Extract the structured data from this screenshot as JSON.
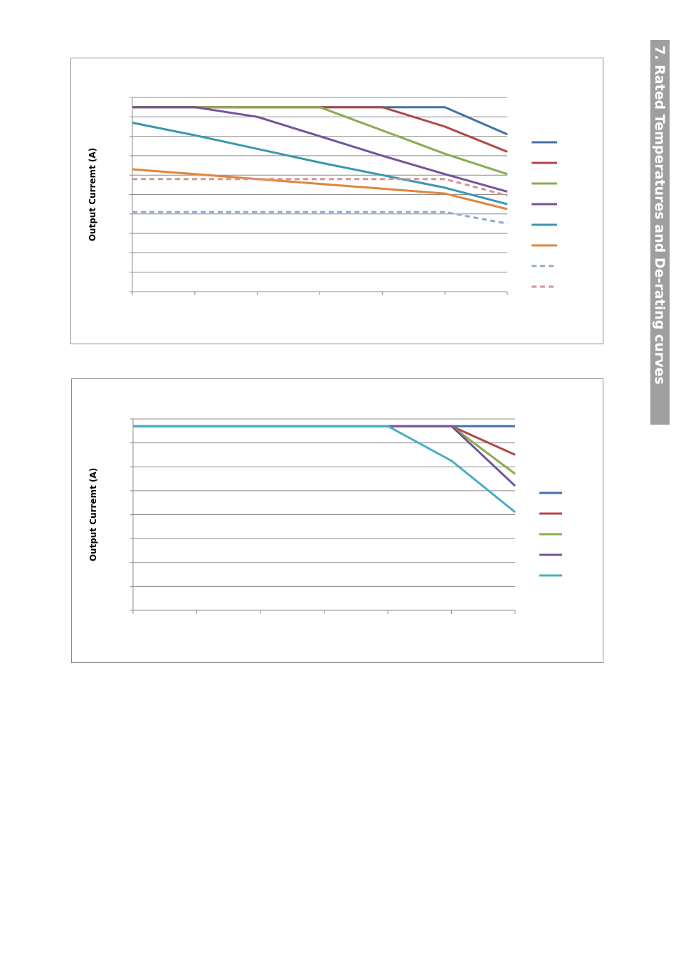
{
  "section": {
    "title": "7. Rated Temperatures and De-rating curves"
  },
  "chart_data": [
    {
      "type": "line",
      "title": "",
      "xlabel": "",
      "ylabel": "Output Curremt (A)",
      "x": [
        0,
        1,
        2,
        3,
        4,
        5,
        6
      ],
      "ylim": [
        0,
        10
      ],
      "grid": true,
      "legend_position": "right",
      "series": [
        {
          "values": [
            9.5,
            9.5,
            9.5,
            9.5,
            9.5,
            9.5,
            8.1
          ],
          "color": "#4470a8",
          "dash": false
        },
        {
          "values": [
            9.5,
            9.5,
            9.5,
            9.5,
            9.5,
            8.5,
            7.2
          ],
          "color": "#b04744",
          "dash": false
        },
        {
          "values": [
            9.5,
            9.5,
            9.5,
            9.5,
            8.3,
            7.1,
            6.05
          ],
          "color": "#8bab4c",
          "dash": false
        },
        {
          "values": [
            9.5,
            9.5,
            9.0,
            8.0,
            7.0,
            6.05,
            5.15
          ],
          "color": "#72549a",
          "dash": false
        },
        {
          "values": [
            8.7,
            8.05,
            7.35,
            6.65,
            6.0,
            5.35,
            4.5
          ],
          "color": "#3a97ad",
          "dash": false
        },
        {
          "values": [
            6.3,
            6.05,
            5.8,
            5.55,
            5.3,
            5.05,
            4.25
          ],
          "color": "#e0853b",
          "dash": false
        },
        {
          "values": [
            4.1,
            4.1,
            4.1,
            4.1,
            4.1,
            4.1,
            3.5
          ],
          "color": "#93a9d2",
          "dash": true
        },
        {
          "values": [
            5.8,
            5.8,
            5.8,
            5.8,
            5.8,
            5.8,
            4.95
          ],
          "color": "#d59593",
          "dash": true
        }
      ]
    },
    {
      "type": "line",
      "title": "",
      "xlabel": "",
      "ylabel": "Output Curremt (A)",
      "x": [
        0,
        1,
        2,
        3,
        4,
        5,
        6
      ],
      "ylim": [
        0,
        8
      ],
      "grid": true,
      "legend_position": "right",
      "series": [
        {
          "values": [
            7.7,
            7.7,
            7.7,
            7.7,
            7.7,
            7.7,
            7.7
          ],
          "color": "#4470a8",
          "dash": false
        },
        {
          "values": [
            7.7,
            7.7,
            7.7,
            7.7,
            7.7,
            7.7,
            6.5
          ],
          "color": "#b04744",
          "dash": false
        },
        {
          "values": [
            7.7,
            7.7,
            7.7,
            7.7,
            7.7,
            7.7,
            5.7
          ],
          "color": "#8bab4c",
          "dash": false
        },
        {
          "values": [
            7.7,
            7.7,
            7.7,
            7.7,
            7.7,
            7.7,
            5.2
          ],
          "color": "#72549a",
          "dash": false
        },
        {
          "values": [
            7.7,
            7.7,
            7.7,
            7.7,
            7.7,
            6.25,
            4.1
          ],
          "color": "#4aaec6",
          "dash": false
        }
      ]
    }
  ]
}
